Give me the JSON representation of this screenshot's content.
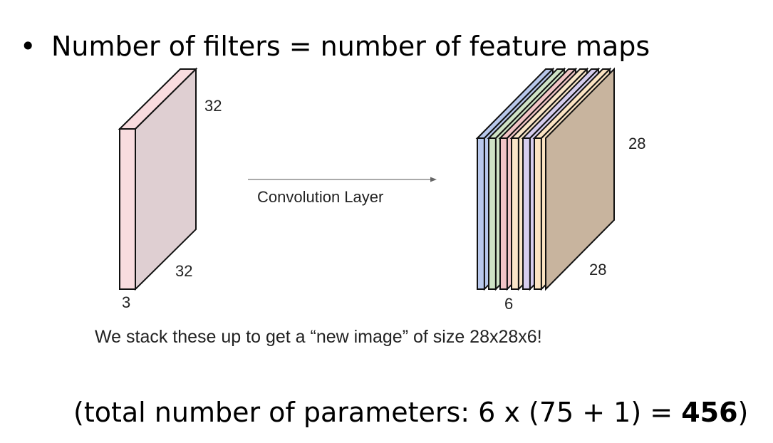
{
  "bullet": {
    "symbol": "•",
    "text": "Number of filters = number of feature maps"
  },
  "input_volume": {
    "height_label": "32",
    "width_label": "32",
    "depth_label": "3",
    "face_color": "#dfcfd2",
    "side_color": "#f9dcdf"
  },
  "arrow": {
    "label": "Convolution Layer"
  },
  "output_volume": {
    "height_label": "28",
    "width_label": "28",
    "depth_label": "6",
    "map_colors": [
      "#b8c8ec",
      "#cfe3c6",
      "#f2c5c6",
      "#f9e5c8",
      "#d6cdee",
      "#fbe3c2"
    ],
    "back_face_color": "#c8b49e"
  },
  "caption": "We stack these up to get a “new image” of size 28x28x6!",
  "params": {
    "prefix": "(total number of parameters: 6 x (75 + 1) = ",
    "value": "456",
    "suffix": ")"
  }
}
